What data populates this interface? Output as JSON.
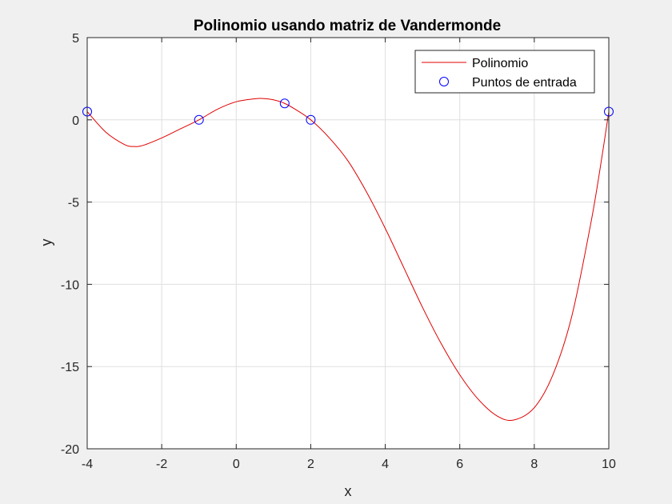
{
  "chart_data": {
    "type": "line",
    "title": "Polinomio usando matriz de Vandermonde",
    "xlabel": "x",
    "ylabel": "y",
    "xlim": [
      -4,
      10
    ],
    "ylim": [
      -20,
      5
    ],
    "xticks": [
      -4,
      -2,
      0,
      2,
      4,
      6,
      8,
      10
    ],
    "yticks": [
      -20,
      -15,
      -10,
      -5,
      0,
      5
    ],
    "grid": true,
    "legend_position": "top-right",
    "series": [
      {
        "name": "Polinomio",
        "kind": "line",
        "color": "#e00000",
        "x": [
          -4,
          -3.5,
          -3,
          -2.75,
          -2.5,
          -2,
          -1.5,
          -1,
          -0.5,
          0,
          0.5,
          0.7,
          1,
          1.3,
          1.6,
          2,
          2.5,
          3,
          3.5,
          4,
          4.5,
          5,
          5.5,
          6,
          6.5,
          7,
          7.45,
          8,
          8.5,
          9,
          9.5,
          9.75,
          10
        ],
        "y": [
          0.5,
          -0.75,
          -1.5,
          -1.62,
          -1.55,
          -1.1,
          -0.55,
          0,
          0.65,
          1.1,
          1.28,
          1.3,
          1.22,
          1.0,
          0.62,
          0,
          -1.1,
          -2.5,
          -4.4,
          -6.6,
          -9.0,
          -11.4,
          -13.6,
          -15.5,
          -17.0,
          -18.0,
          -18.25,
          -17.5,
          -15.5,
          -12.0,
          -6.5,
          -3.2,
          0.5
        ]
      },
      {
        "name": "Puntos de entrada",
        "kind": "scatter",
        "marker": "circle-open",
        "color": "#0000ff",
        "x": [
          -4,
          -1,
          1.3,
          2,
          10
        ],
        "y": [
          0.5,
          0,
          1,
          0,
          0.5
        ]
      }
    ]
  }
}
